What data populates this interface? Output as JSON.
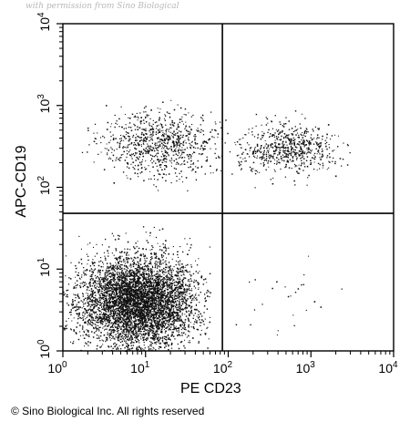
{
  "watermark": "with permission from Sino Biological",
  "copyright": "© Sino Biological Inc. All rights reserved",
  "chart_data": {
    "type": "scatter",
    "title": "",
    "xlabel": "PE CD23",
    "ylabel": "APC-CD19",
    "x_scale": "log",
    "y_scale": "log",
    "xlim": [
      1,
      10000
    ],
    "ylim": [
      1,
      10000
    ],
    "x_ticks": [
      {
        "value": 1,
        "base": "10",
        "exp": "0"
      },
      {
        "value": 10,
        "base": "10",
        "exp": "1"
      },
      {
        "value": 100,
        "base": "10",
        "exp": "2"
      },
      {
        "value": 1000,
        "base": "10",
        "exp": "3"
      },
      {
        "value": 10000,
        "base": "10",
        "exp": "4"
      }
    ],
    "y_ticks": [
      {
        "value": 1,
        "base": "10",
        "exp": "0"
      },
      {
        "value": 10,
        "base": "10",
        "exp": "1"
      },
      {
        "value": 100,
        "base": "10",
        "exp": "2"
      },
      {
        "value": 1000,
        "base": "10",
        "exp": "3"
      },
      {
        "value": 10000,
        "base": "10",
        "exp": "4"
      }
    ],
    "quadrant_gates": {
      "x": 85,
      "y": 48
    },
    "populations": [
      {
        "id": "CD19-neg CD23-neg",
        "x_center": 8,
        "y_center": 4,
        "x_spread_decades": 0.35,
        "y_spread_decades": 0.28,
        "count": 5200,
        "x_range": [
          1,
          60
        ],
        "y_range": [
          1,
          35
        ]
      },
      {
        "id": "CD19-pos CD23-neg",
        "x_center": 15,
        "y_center": 350,
        "x_spread_decades": 0.35,
        "y_spread_decades": 0.2,
        "count": 850,
        "x_range": [
          1.5,
          85
        ],
        "y_range": [
          90,
          1200
        ]
      },
      {
        "id": "CD19-pos CD23-pos",
        "x_center": 500,
        "y_center": 300,
        "x_spread_decades": 0.3,
        "y_spread_decades": 0.15,
        "count": 650,
        "x_range": [
          90,
          3000
        ],
        "y_range": [
          100,
          900
        ]
      },
      {
        "id": "CD19-neg CD23-pos",
        "x_center": 500,
        "y_center": 4,
        "x_spread_decades": 0.45,
        "y_spread_decades": 0.3,
        "count": 25,
        "x_range": [
          90,
          3000
        ],
        "y_range": [
          1.2,
          30
        ]
      }
    ]
  }
}
